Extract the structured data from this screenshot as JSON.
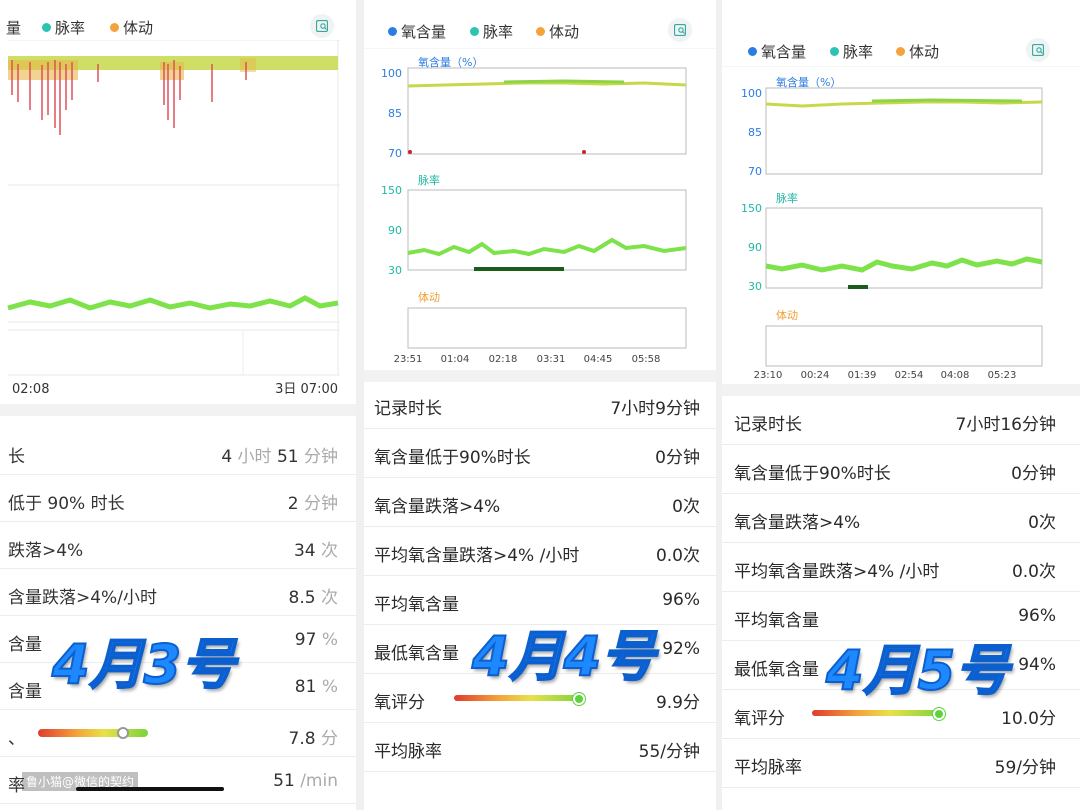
{
  "legend": {
    "oxygen": "氧含量",
    "pulse": "脉率",
    "motion": "体动",
    "oxygen_partial": "量"
  },
  "colors": {
    "oxygen_dot": "#2a7de1",
    "pulse_dot": "#2bc4b4",
    "motion_dot": "#f2a33a",
    "axis_oxygen": "#2a7de1",
    "axis_pulse": "#21b8a6",
    "axis_motion": "#f0a030",
    "pulse_line": "#7ee24a",
    "oxygen_line": "#c7d94a"
  },
  "icons": {
    "screenshot": "chart-screenshot-icon"
  },
  "panel1": {
    "time_start": "02:08",
    "time_end": "3日 07:00",
    "rows": [
      {
        "label": "长",
        "value": "4",
        "unit1": "小时",
        "value2": "51",
        "unit2": "分钟"
      },
      {
        "label": "低于 90% 时长",
        "value": "2",
        "unit1": "分钟"
      },
      {
        "label": "跌落>4%",
        "value": "34",
        "unit1": "次"
      },
      {
        "label": "含量跌落>4%/小时",
        "value": "8.5",
        "unit1": "次"
      },
      {
        "label": "含量",
        "value": "97",
        "unit1": "%"
      },
      {
        "label": "含量",
        "value": "81",
        "unit1": "%"
      },
      {
        "label": "、",
        "value": "7.8",
        "unit1": "分"
      },
      {
        "label": "率",
        "value": "51",
        "unit1": "/min"
      }
    ],
    "date_mark": "4月3号",
    "watermark": "鲁小猫@微信的契约"
  },
  "panel2": {
    "chart_labels": {
      "oxygen": "氧含量（%）",
      "pulse": "脉率",
      "motion": "体动"
    },
    "oxygen_ticks": [
      "100",
      "85",
      "70"
    ],
    "pulse_ticks": [
      "150",
      "90",
      "30"
    ],
    "times": [
      "23:51",
      "01:04",
      "02:18",
      "03:31",
      "04:45",
      "05:58"
    ],
    "rows": [
      {
        "label": "记录时长",
        "value": "7小时9分钟"
      },
      {
        "label": "氧含量低于90%时长",
        "value": "0分钟"
      },
      {
        "label": "氧含量跌落>4%",
        "value": "0次"
      },
      {
        "label": "平均氧含量跌落>4% /小时",
        "value": "0.0次"
      },
      {
        "label": "平均氧含量",
        "value": "96%"
      },
      {
        "label": "最低氧含量",
        "value": "92%"
      },
      {
        "label": "氧评分",
        "value": "9.9分"
      },
      {
        "label": "平均脉率",
        "value": "55/分钟"
      }
    ],
    "date_mark": "4月4号"
  },
  "panel3": {
    "chart_labels": {
      "oxygen": "氧含量（%）",
      "pulse": "脉率",
      "motion": "体动"
    },
    "oxygen_ticks": [
      "100",
      "85",
      "70"
    ],
    "pulse_ticks": [
      "150",
      "90",
      "30"
    ],
    "times": [
      "23:10",
      "00:24",
      "01:39",
      "02:54",
      "04:08",
      "05:23"
    ],
    "rows": [
      {
        "label": "记录时长",
        "value": "7小时16分钟"
      },
      {
        "label": "氧含量低于90%时长",
        "value": "0分钟"
      },
      {
        "label": "氧含量跌落>4%",
        "value": "0次"
      },
      {
        "label": "平均氧含量跌落>4% /小时",
        "value": "0.0次"
      },
      {
        "label": "平均氧含量",
        "value": "96%"
      },
      {
        "label": "最低氧含量",
        "value": "94%"
      },
      {
        "label": "氧评分",
        "value": "10.0分"
      },
      {
        "label": "平均脉率",
        "value": "59/分钟"
      }
    ],
    "date_mark": "4月5号"
  },
  "score": {
    "panel1": 7.8,
    "panel2": 9.9,
    "panel3": 10.0,
    "max": 10
  }
}
